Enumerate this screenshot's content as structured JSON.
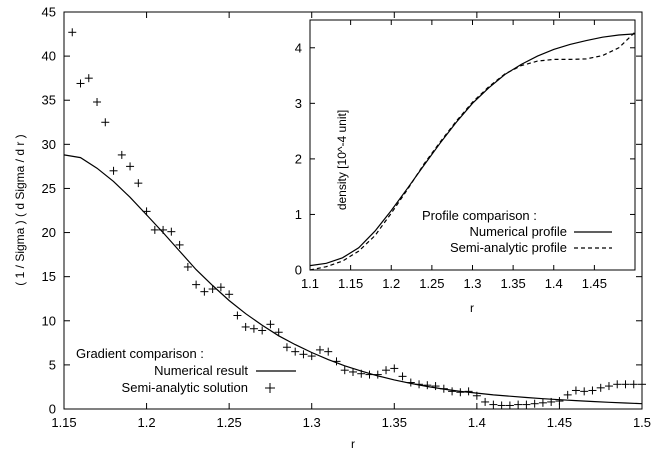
{
  "chart_data": [
    {
      "type": "scatter",
      "title": "",
      "xlabel": "r",
      "ylabel": "( 1 / Sigma ) ( d Sigma / d r )",
      "xlim": [
        1.15,
        1.5
      ],
      "ylim": [
        0,
        45
      ],
      "xticks": [
        "1.15",
        "1.2",
        "1.25",
        "1.3",
        "1.35",
        "1.4",
        "1.45",
        "1.5"
      ],
      "yticks": [
        "0",
        "5",
        "10",
        "15",
        "20",
        "25",
        "30",
        "35",
        "40",
        "45"
      ],
      "legend_title": "Gradient comparison :",
      "legend_position": "bottom-left",
      "series": [
        {
          "name": "Numerical result",
          "style": "line",
          "x": [
            1.15,
            1.16,
            1.17,
            1.18,
            1.19,
            1.2,
            1.21,
            1.22,
            1.23,
            1.24,
            1.25,
            1.26,
            1.27,
            1.28,
            1.29,
            1.3,
            1.31,
            1.32,
            1.33,
            1.34,
            1.35,
            1.36,
            1.37,
            1.38,
            1.39,
            1.4,
            1.41,
            1.42,
            1.43,
            1.44,
            1.45,
            1.46,
            1.47,
            1.48,
            1.49,
            1.5
          ],
          "y": [
            28.8,
            28.5,
            27.3,
            25.8,
            24.0,
            22.0,
            20.0,
            17.9,
            15.8,
            14.0,
            12.3,
            10.8,
            9.5,
            8.3,
            7.3,
            6.4,
            5.6,
            4.9,
            4.3,
            3.75,
            3.3,
            2.9,
            2.55,
            2.25,
            2.0,
            1.8,
            1.6,
            1.45,
            1.3,
            1.17,
            1.05,
            0.95,
            0.85,
            0.76,
            0.68,
            0.6
          ]
        },
        {
          "name": "Semi-analytic solution",
          "style": "points",
          "x": [
            1.155,
            1.16,
            1.165,
            1.17,
            1.175,
            1.18,
            1.185,
            1.19,
            1.195,
            1.2,
            1.205,
            1.21,
            1.215,
            1.22,
            1.225,
            1.23,
            1.235,
            1.24,
            1.245,
            1.25,
            1.255,
            1.26,
            1.265,
            1.27,
            1.275,
            1.28,
            1.285,
            1.29,
            1.295,
            1.3,
            1.305,
            1.31,
            1.315,
            1.32,
            1.325,
            1.33,
            1.335,
            1.34,
            1.345,
            1.35,
            1.355,
            1.36,
            1.365,
            1.37,
            1.375,
            1.38,
            1.385,
            1.39,
            1.395,
            1.4,
            1.405,
            1.41,
            1.415,
            1.42,
            1.425,
            1.43,
            1.435,
            1.44,
            1.445,
            1.45,
            1.455,
            1.46,
            1.465,
            1.47,
            1.475,
            1.48,
            1.485,
            1.49,
            1.495,
            1.5
          ],
          "y": [
            42.7,
            36.9,
            37.5,
            34.8,
            32.5,
            27.0,
            28.8,
            27.5,
            25.6,
            22.4,
            20.3,
            20.3,
            20.1,
            18.6,
            16.1,
            14.1,
            13.3,
            13.6,
            13.8,
            13.0,
            10.6,
            9.3,
            9.1,
            8.9,
            9.6,
            8.7,
            7.0,
            6.5,
            6.2,
            6.0,
            6.7,
            6.5,
            5.4,
            4.4,
            4.2,
            4.0,
            3.9,
            3.9,
            4.4,
            4.6,
            3.7,
            3.0,
            2.8,
            2.7,
            2.6,
            2.3,
            2.0,
            1.9,
            2.0,
            1.5,
            0.8,
            0.5,
            0.4,
            0.4,
            0.5,
            0.5,
            0.6,
            0.7,
            0.8,
            0.9,
            1.6,
            2.1,
            2.0,
            2.1,
            2.4,
            2.6,
            2.8,
            2.8,
            2.8,
            2.8
          ]
        }
      ]
    },
    {
      "type": "line",
      "title": "",
      "xlabel": "r",
      "ylabel": "density [10^-4 unit]",
      "xlim": [
        1.1,
        1.5
      ],
      "ylim": [
        0,
        4.5
      ],
      "xticks": [
        "1.1",
        "1.15",
        "1.2",
        "1.25",
        "1.3",
        "1.35",
        "1.4",
        "1.45"
      ],
      "yticks": [
        "0",
        "1",
        "2",
        "3",
        "4"
      ],
      "legend_title": "Profile comparison :",
      "legend_position": "bottom-right",
      "series": [
        {
          "name": "Numerical profile",
          "style": "solid",
          "x": [
            1.1,
            1.12,
            1.14,
            1.16,
            1.18,
            1.2,
            1.22,
            1.24,
            1.26,
            1.28,
            1.3,
            1.32,
            1.34,
            1.36,
            1.38,
            1.4,
            1.42,
            1.44,
            1.46,
            1.48,
            1.5
          ],
          "y": [
            0.08,
            0.12,
            0.22,
            0.4,
            0.7,
            1.07,
            1.47,
            1.88,
            2.28,
            2.66,
            3.0,
            3.28,
            3.52,
            3.7,
            3.85,
            3.97,
            4.06,
            4.13,
            4.19,
            4.23,
            4.25
          ]
        },
        {
          "name": "Semi-analytic profile",
          "style": "dashed",
          "x": [
            1.1,
            1.12,
            1.14,
            1.16,
            1.18,
            1.2,
            1.22,
            1.24,
            1.26,
            1.28,
            1.3,
            1.32,
            1.34,
            1.36,
            1.38,
            1.4,
            1.42,
            1.44,
            1.46,
            1.48,
            1.5
          ],
          "y": [
            0.0,
            0.06,
            0.16,
            0.34,
            0.62,
            1.02,
            1.45,
            1.9,
            2.3,
            2.68,
            3.02,
            3.3,
            3.53,
            3.68,
            3.76,
            3.79,
            3.79,
            3.8,
            3.86,
            4.0,
            4.28
          ]
        }
      ]
    }
  ]
}
